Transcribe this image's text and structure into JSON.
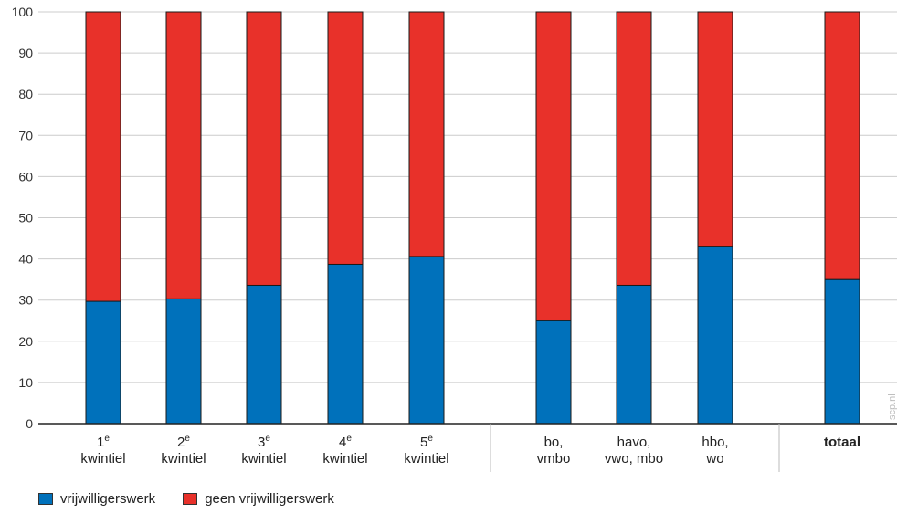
{
  "chart_data": {
    "type": "bar",
    "stacked": true,
    "ylim": [
      0,
      100
    ],
    "yticks": [
      "0",
      "10",
      "20",
      "30",
      "40",
      "50",
      "60",
      "70",
      "80",
      "90",
      "100"
    ],
    "categories": [
      {
        "lines": [
          "1",
          "kwintiel"
        ],
        "sup": "e",
        "bold": false
      },
      {
        "lines": [
          "2",
          "kwintiel"
        ],
        "sup": "e",
        "bold": false
      },
      {
        "lines": [
          "3",
          "kwintiel"
        ],
        "sup": "e",
        "bold": false
      },
      {
        "lines": [
          "4",
          "kwintiel"
        ],
        "sup": "e",
        "bold": false
      },
      {
        "lines": [
          "5",
          "kwintiel"
        ],
        "sup": "e",
        "bold": false
      },
      {
        "lines": [
          "bo,",
          "vmbo"
        ],
        "sup": "",
        "bold": false
      },
      {
        "lines": [
          "havo,",
          "vwo, mbo"
        ],
        "sup": "",
        "bold": false
      },
      {
        "lines": [
          "hbo,",
          "wo"
        ],
        "sup": "",
        "bold": false
      },
      {
        "lines": [
          "totaal"
        ],
        "sup": "",
        "bold": true
      }
    ],
    "series": [
      {
        "name": "vrijwilligerswerk",
        "color": "#0071bb",
        "values": [
          29.7,
          30.3,
          33.6,
          38.7,
          40.6,
          25.0,
          33.6,
          43.1,
          35.0
        ]
      },
      {
        "name": "geen vrijwilligerswerk",
        "color": "#e8312a",
        "values": [
          70.3,
          69.7,
          66.4,
          61.3,
          59.4,
          75.0,
          66.4,
          56.9,
          65.0
        ]
      }
    ],
    "grid": true,
    "legend_position": "bottom-left",
    "watermark": "scp.nl"
  }
}
